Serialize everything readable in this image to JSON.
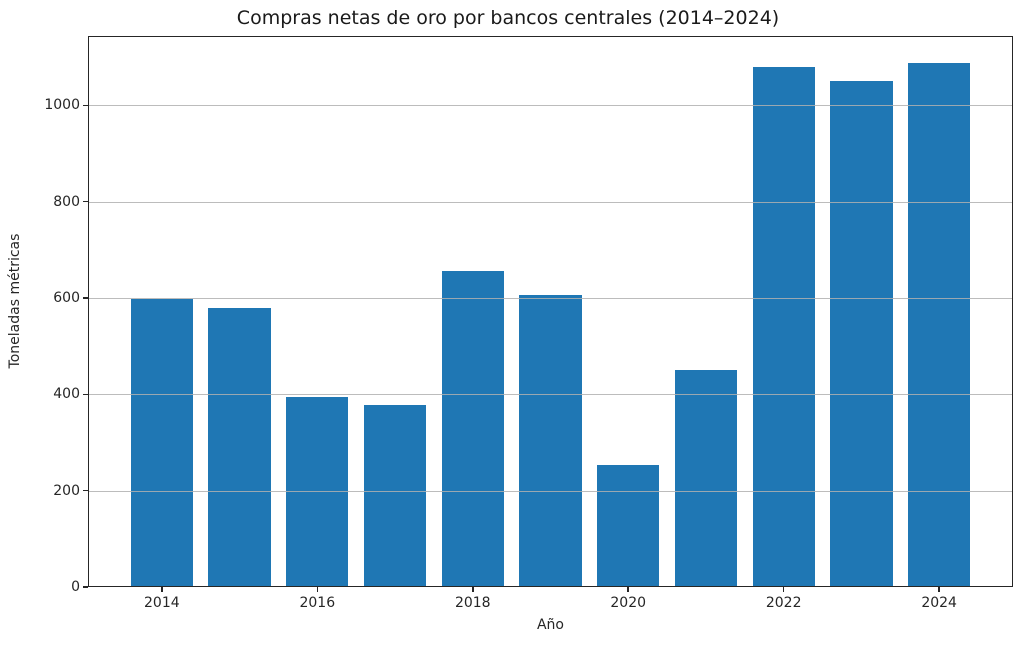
{
  "figure": {
    "title": "Compras netas de oro por bancos centrales (2014–2024)"
  },
  "chart_data": {
    "type": "bar",
    "title": "Compras netas de oro por bancos centrales (2014–2024)",
    "xlabel": "Año",
    "ylabel": "Toneladas métricas",
    "categories": [
      2014,
      2015,
      2016,
      2017,
      2018,
      2019,
      2020,
      2021,
      2022,
      2023,
      2024
    ],
    "values": [
      598,
      580,
      394,
      378,
      656,
      606,
      254,
      450,
      1080,
      1050,
      1089
    ],
    "yticks": [
      0,
      200,
      400,
      600,
      800,
      1000
    ],
    "xticks": [
      2014,
      2016,
      2018,
      2020,
      2022,
      2024
    ],
    "ylim": [
      0,
      1144
    ],
    "bar_color": "#1f77b4",
    "grid_color": "#b0b0b0",
    "axis_color": "#262626",
    "grid": "horizontal gridlines at yticks, drawn above bars",
    "legend": "none"
  }
}
